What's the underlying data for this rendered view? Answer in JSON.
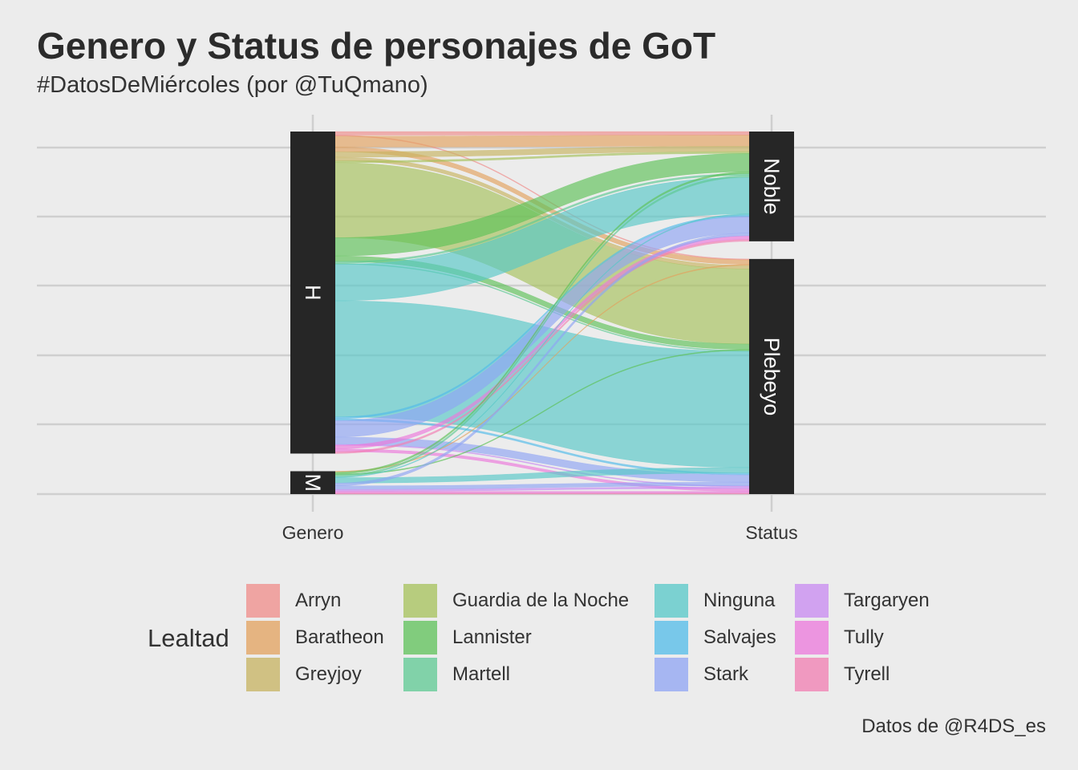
{
  "title": "Genero y Status de personajes de GoT",
  "subtitle": "#DatosDeMiércoles (por @TuQmano)",
  "caption": "Datos de @R4DS_es",
  "chart_data": {
    "type": "alluvial",
    "axes": [
      "Genero",
      "Status"
    ],
    "genero_strata": [
      "H",
      "M"
    ],
    "status_strata": [
      "Noble",
      "Plebeyo"
    ],
    "legend_title": "Lealtad",
    "legend_position": "bottom",
    "grid": true,
    "lealtades": [
      {
        "name": "Arryn",
        "color": "#F08C8A"
      },
      {
        "name": "Baratheon",
        "color": "#E3A25E"
      },
      {
        "name": "Greyjoy",
        "color": "#C7B360"
      },
      {
        "name": "Guardia de la Noche",
        "color": "#A6C25A"
      },
      {
        "name": "Lannister",
        "color": "#5DC258"
      },
      {
        "name": "Martell",
        "color": "#5ECA93"
      },
      {
        "name": "Ninguna",
        "color": "#56C8C8"
      },
      {
        "name": "Salvajes",
        "color": "#52BCEA"
      },
      {
        "name": "Stark",
        "color": "#8FA4F4"
      },
      {
        "name": "Targaryen",
        "color": "#C88AF2"
      },
      {
        "name": "Tully",
        "color": "#EC78DC"
      },
      {
        "name": "Tyrell",
        "color": "#F27EB2"
      }
    ],
    "flows": [
      {
        "lealtad": "Arryn",
        "genero": "H",
        "status": "Noble",
        "value": 4
      },
      {
        "lealtad": "Arryn",
        "genero": "H",
        "status": "Plebeyo",
        "value": 1
      },
      {
        "lealtad": "Baratheon",
        "genero": "H",
        "status": "Noble",
        "value": 12
      },
      {
        "lealtad": "Baratheon",
        "genero": "H",
        "status": "Plebeyo",
        "value": 5
      },
      {
        "lealtad": "Baratheon",
        "genero": "M",
        "status": "Plebeyo",
        "value": 1
      },
      {
        "lealtad": "Greyjoy",
        "genero": "H",
        "status": "Noble",
        "value": 6
      },
      {
        "lealtad": "Greyjoy",
        "genero": "H",
        "status": "Plebeyo",
        "value": 4
      },
      {
        "lealtad": "Guardia de la Noche",
        "genero": "H",
        "status": "Plebeyo",
        "value": 82
      },
      {
        "lealtad": "Guardia de la Noche",
        "genero": "H",
        "status": "Noble",
        "value": 2
      },
      {
        "lealtad": "Lannister",
        "genero": "H",
        "status": "Noble",
        "value": 20
      },
      {
        "lealtad": "Lannister",
        "genero": "H",
        "status": "Plebeyo",
        "value": 6
      },
      {
        "lealtad": "Lannister",
        "genero": "M",
        "status": "Noble",
        "value": 2
      },
      {
        "lealtad": "Lannister",
        "genero": "M",
        "status": "Plebeyo",
        "value": 1
      },
      {
        "lealtad": "Martell",
        "genero": "H",
        "status": "Noble",
        "value": 2
      },
      {
        "lealtad": "Martell",
        "genero": "H",
        "status": "Plebeyo",
        "value": 1
      },
      {
        "lealtad": "Martell",
        "genero": "M",
        "status": "Noble",
        "value": 2
      },
      {
        "lealtad": "Ninguna",
        "genero": "H",
        "status": "Noble",
        "value": 40
      },
      {
        "lealtad": "Ninguna",
        "genero": "H",
        "status": "Plebeyo",
        "value": 127
      },
      {
        "lealtad": "Ninguna",
        "genero": "M",
        "status": "Noble",
        "value": 1
      },
      {
        "lealtad": "Ninguna",
        "genero": "M",
        "status": "Plebeyo",
        "value": 6
      },
      {
        "lealtad": "Salvajes",
        "genero": "H",
        "status": "Noble",
        "value": 2
      },
      {
        "lealtad": "Salvajes",
        "genero": "H",
        "status": "Plebeyo",
        "value": 2
      },
      {
        "lealtad": "Stark",
        "genero": "H",
        "status": "Noble",
        "value": 18
      },
      {
        "lealtad": "Stark",
        "genero": "H",
        "status": "Plebeyo",
        "value": 8
      },
      {
        "lealtad": "Stark",
        "genero": "M",
        "status": "Noble",
        "value": 3
      },
      {
        "lealtad": "Stark",
        "genero": "M",
        "status": "Plebeyo",
        "value": 4
      },
      {
        "lealtad": "Targaryen",
        "genero": "H",
        "status": "Plebeyo",
        "value": 1
      },
      {
        "lealtad": "Targaryen",
        "genero": "M",
        "status": "Plebeyo",
        "value": 2
      },
      {
        "lealtad": "Tully",
        "genero": "H",
        "status": "Noble",
        "value": 4
      },
      {
        "lealtad": "Tully",
        "genero": "H",
        "status": "Plebeyo",
        "value": 3
      },
      {
        "lealtad": "Tully",
        "genero": "M",
        "status": "Plebeyo",
        "value": 2
      },
      {
        "lealtad": "Tyrell",
        "genero": "H",
        "status": "Noble",
        "value": 2
      },
      {
        "lealtad": "Tyrell",
        "genero": "M",
        "status": "Plebeyo",
        "value": 1
      }
    ]
  }
}
